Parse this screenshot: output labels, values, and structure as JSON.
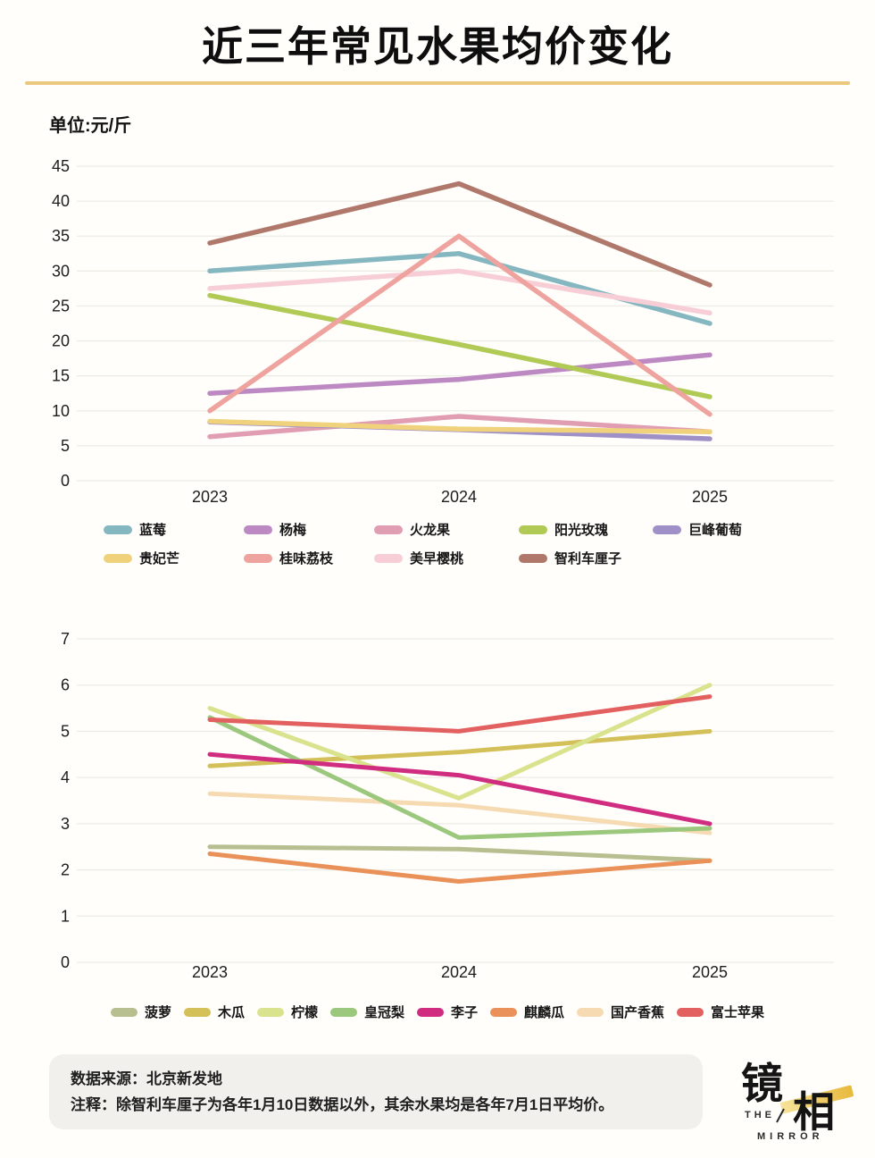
{
  "title": "近三年常见水果均价变化",
  "unit_label": "单位:元/斤",
  "chart_data": [
    {
      "type": "line",
      "x": [
        "2023",
        "2024",
        "2025"
      ],
      "ylim": [
        0,
        45
      ],
      "ytick_step": 5,
      "grid": "horizontal",
      "legend_position": "bottom-left-two-rows",
      "series": [
        {
          "name": "蓝莓",
          "color": "#85b7c1",
          "values": [
            30,
            32.5,
            22.5
          ]
        },
        {
          "name": "杨梅",
          "color": "#bd89c3",
          "values": [
            12.5,
            14.5,
            18
          ]
        },
        {
          "name": "火龙果",
          "color": "#e19eb3",
          "values": [
            6.3,
            9.2,
            7
          ]
        },
        {
          "name": "阳光玫瑰",
          "color": "#b0ca55",
          "values": [
            26.5,
            19.5,
            12
          ]
        },
        {
          "name": "巨峰葡萄",
          "color": "#9f90c8",
          "values": [
            8.4,
            7.3,
            6
          ]
        },
        {
          "name": "贵妃芒",
          "color": "#f1d27c",
          "values": [
            8.5,
            7.4,
            7
          ]
        },
        {
          "name": "桂味荔枝",
          "color": "#efa39f",
          "values": [
            10,
            35,
            9.5
          ]
        },
        {
          "name": "美早樱桃",
          "color": "#f7ced6",
          "values": [
            27.5,
            30,
            24
          ]
        },
        {
          "name": "智利车厘子",
          "color": "#b0786b",
          "values": [
            34,
            42.5,
            28
          ]
        }
      ]
    },
    {
      "type": "line",
      "x": [
        "2023",
        "2024",
        "2025"
      ],
      "ylim": [
        0,
        7
      ],
      "ytick_step": 1,
      "grid": "horizontal",
      "legend_position": "bottom-center-one-row",
      "series": [
        {
          "name": "菠萝",
          "color": "#b7bf90",
          "values": [
            2.5,
            2.45,
            2.2
          ]
        },
        {
          "name": "木瓜",
          "color": "#d4c058",
          "values": [
            4.25,
            4.55,
            5
          ]
        },
        {
          "name": "柠檬",
          "color": "#d9e38d",
          "values": [
            5.5,
            3.55,
            6
          ]
        },
        {
          "name": "皇冠梨",
          "color": "#9cc87e",
          "values": [
            5.3,
            2.7,
            2.9
          ]
        },
        {
          "name": "李子",
          "color": "#d12d80",
          "values": [
            4.5,
            4.05,
            3
          ]
        },
        {
          "name": "麒麟瓜",
          "color": "#ea9159",
          "values": [
            2.35,
            1.75,
            2.2
          ]
        },
        {
          "name": "国产香蕉",
          "color": "#f6dbb2",
          "values": [
            3.65,
            3.4,
            2.8
          ]
        },
        {
          "name": "富士苹果",
          "color": "#e2605f",
          "values": [
            5.25,
            5,
            5.75
          ]
        }
      ]
    }
  ],
  "footer": {
    "source_line": "数据来源：北京新发地",
    "note_line": "注释：除智利车厘子为各年1月10日数据以外，其余水果均是各年7月1日平均价。"
  },
  "logo": {
    "char_top": "镜",
    "char_bottom": "相",
    "sub_top": "THE",
    "sub_bottom": "MIRROR"
  },
  "colors": {
    "divider_gold": "#eac87d",
    "gridline": "#edece5",
    "footer_bg": "#f1f0ec"
  }
}
